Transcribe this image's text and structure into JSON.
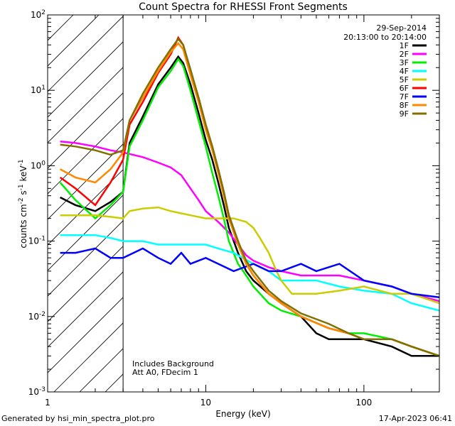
{
  "chart_data": {
    "type": "line",
    "title": "Count Spectra for RHESSI Front Segments",
    "xlabel": "Energy (keV)",
    "ylabel_parts": [
      "counts cm",
      "-2",
      " s",
      "-1",
      " keV",
      "-1"
    ],
    "xscale": "log",
    "yscale": "log",
    "xlim": [
      1.0,
      300.0
    ],
    "ylim": [
      0.001,
      100.0
    ],
    "x_tick_labels": [
      {
        "value": 1,
        "label": "1"
      },
      {
        "value": 10,
        "label": "10"
      },
      {
        "value": 100,
        "label": "100"
      }
    ],
    "y_tick_labels": [
      {
        "value": 0.001,
        "base": "10",
        "exp": "-3"
      },
      {
        "value": 0.01,
        "base": "10",
        "exp": "-2"
      },
      {
        "value": 0.1,
        "base": "10",
        "exp": "-1"
      },
      {
        "value": 1,
        "base": "10",
        "exp": "0"
      },
      {
        "value": 10,
        "base": "10",
        "exp": "1"
      },
      {
        "value": 100,
        "base": "10",
        "exp": "2"
      }
    ],
    "date": "29-Sep-2014",
    "time_range": "20:13:00 to 20:14:00",
    "annotations": [
      "Includes Background",
      "Att A0, FDecim 1"
    ],
    "excluded_region": [
      1.0,
      3.0
    ],
    "series": [
      {
        "name": "1F",
        "color": "#000000",
        "points": [
          [
            1.2,
            0.38
          ],
          [
            1.5,
            0.3
          ],
          [
            2.0,
            0.25
          ],
          [
            2.5,
            0.33
          ],
          [
            3.0,
            0.45
          ],
          [
            3.3,
            2.0
          ],
          [
            4.0,
            4.5
          ],
          [
            5.0,
            12
          ],
          [
            6.0,
            20
          ],
          [
            6.7,
            28
          ],
          [
            7.2,
            23
          ],
          [
            8.0,
            12
          ],
          [
            9.0,
            5
          ],
          [
            10.0,
            2.2
          ],
          [
            11,
            1.2
          ],
          [
            12,
            0.6
          ],
          [
            13,
            0.3
          ],
          [
            14,
            0.15
          ],
          [
            16,
            0.07
          ],
          [
            18,
            0.04
          ],
          [
            20,
            0.03
          ],
          [
            25,
            0.02
          ],
          [
            30,
            0.015
          ],
          [
            40,
            0.01
          ],
          [
            50,
            0.006
          ],
          [
            60,
            0.005
          ],
          [
            80,
            0.005
          ],
          [
            100,
            0.005
          ],
          [
            150,
            0.004
          ],
          [
            200,
            0.003
          ],
          [
            300,
            0.003
          ]
        ]
      },
      {
        "name": "2F",
        "color": "#ff00ff",
        "points": [
          [
            1.2,
            2.1
          ],
          [
            1.5,
            2.0
          ],
          [
            2.0,
            1.8
          ],
          [
            2.5,
            1.6
          ],
          [
            3.0,
            1.5
          ],
          [
            4.0,
            1.3
          ],
          [
            5.0,
            1.1
          ],
          [
            6.0,
            0.95
          ],
          [
            7.0,
            0.75
          ],
          [
            8.0,
            0.5
          ],
          [
            9.0,
            0.35
          ],
          [
            10.0,
            0.25
          ],
          [
            12,
            0.18
          ],
          [
            14,
            0.13
          ],
          [
            16,
            0.09
          ],
          [
            18,
            0.065
          ],
          [
            20,
            0.055
          ],
          [
            25,
            0.045
          ],
          [
            30,
            0.04
          ],
          [
            40,
            0.035
          ],
          [
            50,
            0.035
          ],
          [
            70,
            0.035
          ],
          [
            100,
            0.03
          ],
          [
            150,
            0.025
          ],
          [
            200,
            0.02
          ],
          [
            300,
            0.016
          ]
        ]
      },
      {
        "name": "3F",
        "color": "#00ee00",
        "points": [
          [
            1.2,
            0.6
          ],
          [
            1.5,
            0.35
          ],
          [
            2.0,
            0.2
          ],
          [
            2.5,
            0.3
          ],
          [
            3.0,
            0.45
          ],
          [
            3.3,
            1.8
          ],
          [
            4.0,
            4
          ],
          [
            5.0,
            11
          ],
          [
            6.0,
            18
          ],
          [
            6.7,
            26
          ],
          [
            7.2,
            21
          ],
          [
            8.0,
            10
          ],
          [
            9.0,
            4
          ],
          [
            10.0,
            1.8
          ],
          [
            11,
            0.8
          ],
          [
            12,
            0.4
          ],
          [
            13,
            0.2
          ],
          [
            14,
            0.1
          ],
          [
            16,
            0.05
          ],
          [
            18,
            0.035
          ],
          [
            20,
            0.025
          ],
          [
            25,
            0.015
          ],
          [
            30,
            0.012
          ],
          [
            40,
            0.01
          ],
          [
            60,
            0.007
          ],
          [
            80,
            0.006
          ],
          [
            100,
            0.006
          ],
          [
            150,
            0.005
          ],
          [
            200,
            0.004
          ],
          [
            300,
            0.003
          ]
        ]
      },
      {
        "name": "4F",
        "color": "#00ffff",
        "points": [
          [
            1.2,
            0.12
          ],
          [
            1.5,
            0.12
          ],
          [
            2.0,
            0.12
          ],
          [
            2.5,
            0.11
          ],
          [
            3.0,
            0.1
          ],
          [
            4.0,
            0.1
          ],
          [
            5.0,
            0.09
          ],
          [
            6.0,
            0.09
          ],
          [
            8.0,
            0.09
          ],
          [
            10.0,
            0.09
          ],
          [
            12,
            0.08
          ],
          [
            15,
            0.07
          ],
          [
            20,
            0.05
          ],
          [
            25,
            0.04
          ],
          [
            30,
            0.03
          ],
          [
            40,
            0.03
          ],
          [
            50,
            0.03
          ],
          [
            70,
            0.025
          ],
          [
            100,
            0.022
          ],
          [
            150,
            0.02
          ],
          [
            200,
            0.015
          ],
          [
            300,
            0.012
          ]
        ]
      },
      {
        "name": "5F",
        "color": "#cccc00",
        "points": [
          [
            1.2,
            0.22
          ],
          [
            1.5,
            0.22
          ],
          [
            2.0,
            0.22
          ],
          [
            2.5,
            0.21
          ],
          [
            3.0,
            0.2
          ],
          [
            3.3,
            0.25
          ],
          [
            4.0,
            0.27
          ],
          [
            5.0,
            0.28
          ],
          [
            6.0,
            0.25
          ],
          [
            8.0,
            0.22
          ],
          [
            10.0,
            0.2
          ],
          [
            12,
            0.2
          ],
          [
            15,
            0.2
          ],
          [
            18,
            0.18
          ],
          [
            20,
            0.15
          ],
          [
            22,
            0.11
          ],
          [
            25,
            0.07
          ],
          [
            28,
            0.04
          ],
          [
            30,
            0.03
          ],
          [
            35,
            0.02
          ],
          [
            40,
            0.02
          ],
          [
            50,
            0.02
          ],
          [
            70,
            0.022
          ],
          [
            100,
            0.025
          ],
          [
            150,
            0.02
          ],
          [
            200,
            0.02
          ],
          [
            300,
            0.015
          ]
        ]
      },
      {
        "name": "6F",
        "color": "#ff0000",
        "points": [
          [
            1.2,
            0.7
          ],
          [
            1.5,
            0.5
          ],
          [
            2.0,
            0.3
          ],
          [
            2.5,
            0.6
          ],
          [
            3.0,
            1.2
          ],
          [
            3.3,
            3.5
          ],
          [
            4.0,
            7
          ],
          [
            5.0,
            17
          ],
          [
            6.0,
            30
          ],
          [
            6.7,
            50
          ],
          [
            7.2,
            40
          ],
          [
            8.0,
            18
          ],
          [
            9.0,
            8
          ],
          [
            10.0,
            3.5
          ],
          [
            11,
            1.8
          ],
          [
            12,
            0.9
          ],
          [
            13,
            0.45
          ],
          [
            14,
            0.22
          ],
          [
            16,
            0.1
          ],
          [
            18,
            0.05
          ],
          [
            20,
            0.035
          ],
          [
            25,
            0.02
          ],
          [
            30,
            0.015
          ],
          [
            40,
            0.01
          ],
          [
            60,
            0.007
          ],
          [
            80,
            0.006
          ],
          [
            100,
            0.005
          ],
          [
            150,
            0.005
          ],
          [
            200,
            0.004
          ],
          [
            300,
            0.003
          ]
        ]
      },
      {
        "name": "7F",
        "color": "#0000ff",
        "points": [
          [
            1.2,
            0.07
          ],
          [
            1.5,
            0.07
          ],
          [
            2.0,
            0.08
          ],
          [
            2.5,
            0.06
          ],
          [
            3.0,
            0.06
          ],
          [
            4.0,
            0.08
          ],
          [
            5.0,
            0.06
          ],
          [
            6.0,
            0.05
          ],
          [
            7.0,
            0.07
          ],
          [
            8.0,
            0.05
          ],
          [
            10.0,
            0.06
          ],
          [
            12,
            0.05
          ],
          [
            15,
            0.04
          ],
          [
            20,
            0.05
          ],
          [
            25,
            0.04
          ],
          [
            30,
            0.04
          ],
          [
            40,
            0.05
          ],
          [
            50,
            0.04
          ],
          [
            70,
            0.05
          ],
          [
            100,
            0.03
          ],
          [
            150,
            0.025
          ],
          [
            200,
            0.02
          ],
          [
            300,
            0.018
          ]
        ]
      },
      {
        "name": "8F",
        "color": "#ff8800",
        "points": [
          [
            1.2,
            0.9
          ],
          [
            1.5,
            0.7
          ],
          [
            2.0,
            0.6
          ],
          [
            2.5,
            0.9
          ],
          [
            3.0,
            1.5
          ],
          [
            3.3,
            4
          ],
          [
            4.0,
            8
          ],
          [
            5.0,
            18
          ],
          [
            6.0,
            32
          ],
          [
            6.7,
            42
          ],
          [
            7.2,
            35
          ],
          [
            8.0,
            16
          ],
          [
            9.0,
            7
          ],
          [
            10.0,
            3
          ],
          [
            11,
            1.6
          ],
          [
            12,
            0.8
          ],
          [
            13,
            0.4
          ],
          [
            14,
            0.2
          ],
          [
            16,
            0.09
          ],
          [
            18,
            0.05
          ],
          [
            20,
            0.035
          ],
          [
            25,
            0.02
          ],
          [
            30,
            0.015
          ],
          [
            40,
            0.01
          ],
          [
            60,
            0.007
          ],
          [
            80,
            0.006
          ],
          [
            100,
            0.005
          ],
          [
            150,
            0.005
          ],
          [
            200,
            0.004
          ],
          [
            300,
            0.003
          ]
        ]
      },
      {
        "name": "9F",
        "color": "#807000",
        "points": [
          [
            1.2,
            1.9
          ],
          [
            1.5,
            1.8
          ],
          [
            2.0,
            1.6
          ],
          [
            2.5,
            1.4
          ],
          [
            3.0,
            1.6
          ],
          [
            3.3,
            4
          ],
          [
            4.0,
            9
          ],
          [
            5.0,
            20
          ],
          [
            6.0,
            35
          ],
          [
            6.7,
            48
          ],
          [
            7.2,
            40
          ],
          [
            8.0,
            19
          ],
          [
            9.0,
            8
          ],
          [
            10.0,
            3.5
          ],
          [
            11,
            1.8
          ],
          [
            12,
            0.9
          ],
          [
            13,
            0.45
          ],
          [
            14,
            0.22
          ],
          [
            16,
            0.1
          ],
          [
            18,
            0.055
          ],
          [
            20,
            0.04
          ],
          [
            25,
            0.022
          ],
          [
            30,
            0.016
          ],
          [
            40,
            0.011
          ],
          [
            60,
            0.008
          ],
          [
            80,
            0.006
          ],
          [
            100,
            0.005
          ],
          [
            150,
            0.005
          ],
          [
            200,
            0.004
          ],
          [
            300,
            0.003
          ]
        ]
      }
    ]
  },
  "footer": {
    "left": "Generated by hsi_min_spectra_plot.pro",
    "right": "17-Apr-2023 06:41"
  }
}
